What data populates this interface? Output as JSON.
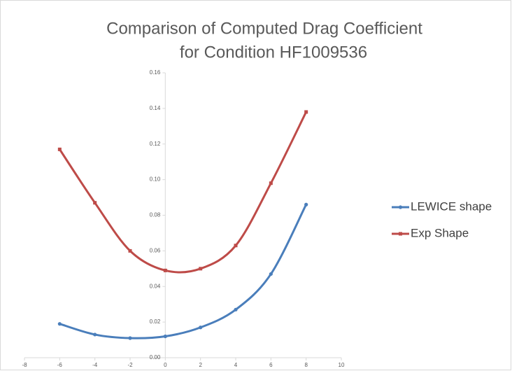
{
  "chart_data": {
    "type": "scatter",
    "title": [
      "Comparison of Computed Drag Coefficient",
      "for Condition HF1009536"
    ],
    "series": [
      {
        "name": "LEWICE shape",
        "color": "#4a7ebb",
        "marker": "circle",
        "x": [
          -6,
          -4,
          -2,
          0,
          2,
          4,
          6,
          8
        ],
        "values": [
          0.019,
          0.013,
          0.011,
          0.012,
          0.017,
          0.027,
          0.047,
          0.086
        ]
      },
      {
        "name": "Exp Shape",
        "color": "#be4b48",
        "marker": "square",
        "x": [
          -6,
          -4,
          -2,
          0,
          2,
          4,
          6,
          8
        ],
        "values": [
          0.117,
          0.087,
          0.06,
          0.049,
          0.05,
          0.063,
          0.098,
          0.138
        ]
      }
    ],
    "xlim": [
      -8,
      10
    ],
    "xticks": [
      -8,
      -6,
      -4,
      -2,
      0,
      2,
      4,
      6,
      8,
      10
    ],
    "ylim": [
      0,
      0.16
    ],
    "yticks": [
      {
        "value": 0,
        "label": "0.00"
      },
      {
        "value": 0.02,
        "label": "0.02"
      },
      {
        "value": 0.04,
        "label": "0.04"
      },
      {
        "value": 0.06,
        "label": "0.06"
      },
      {
        "value": 0.08,
        "label": "0.08"
      },
      {
        "value": 0.1,
        "label": "0.10"
      },
      {
        "value": 0.12,
        "label": "0.12"
      },
      {
        "value": 0.14,
        "label": "0.14"
      },
      {
        "value": 0.16,
        "label": "0.16"
      }
    ],
    "smooth": true,
    "legend": "right"
  }
}
